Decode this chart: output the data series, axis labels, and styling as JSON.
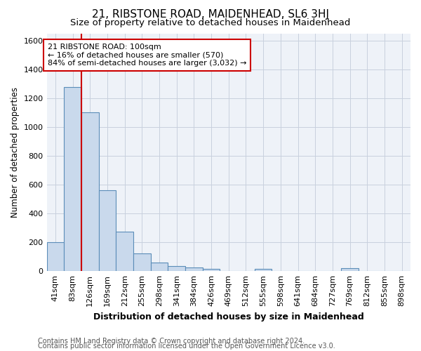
{
  "title": "21, RIBSTONE ROAD, MAIDENHEAD, SL6 3HJ",
  "subtitle": "Size of property relative to detached houses in Maidenhead",
  "xlabel": "Distribution of detached houses by size in Maidenhead",
  "ylabel": "Number of detached properties",
  "footer_line1": "Contains HM Land Registry data © Crown copyright and database right 2024.",
  "footer_line2": "Contains public sector information licensed under the Open Government Licence v3.0.",
  "bar_labels": [
    "41sqm",
    "83sqm",
    "126sqm",
    "169sqm",
    "212sqm",
    "255sqm",
    "298sqm",
    "341sqm",
    "384sqm",
    "426sqm",
    "469sqm",
    "512sqm",
    "555sqm",
    "598sqm",
    "641sqm",
    "684sqm",
    "727sqm",
    "769sqm",
    "812sqm",
    "855sqm",
    "898sqm"
  ],
  "bar_values": [
    200,
    1275,
    1100,
    560,
    275,
    125,
    60,
    35,
    25,
    15,
    0,
    0,
    15,
    0,
    0,
    0,
    0,
    20,
    0,
    0,
    0
  ],
  "bar_color": "#c9d9ec",
  "bar_edge_color": "#5b8db8",
  "bar_edge_width": 0.8,
  "ylim": [
    0,
    1650
  ],
  "yticks": [
    0,
    200,
    400,
    600,
    800,
    1000,
    1200,
    1400,
    1600
  ],
  "property_line_x": 1.5,
  "property_line_color": "#cc0000",
  "annotation_text": "21 RIBSTONE ROAD: 100sqm\n← 16% of detached houses are smaller (570)\n84% of semi-detached houses are larger (3,032) →",
  "grid_color": "#c8d0de",
  "bg_color": "#eef2f8",
  "title_fontsize": 11,
  "subtitle_fontsize": 9.5,
  "xlabel_fontsize": 9,
  "ylabel_fontsize": 8.5,
  "tick_fontsize": 8,
  "annotation_fontsize": 8,
  "footer_fontsize": 7
}
